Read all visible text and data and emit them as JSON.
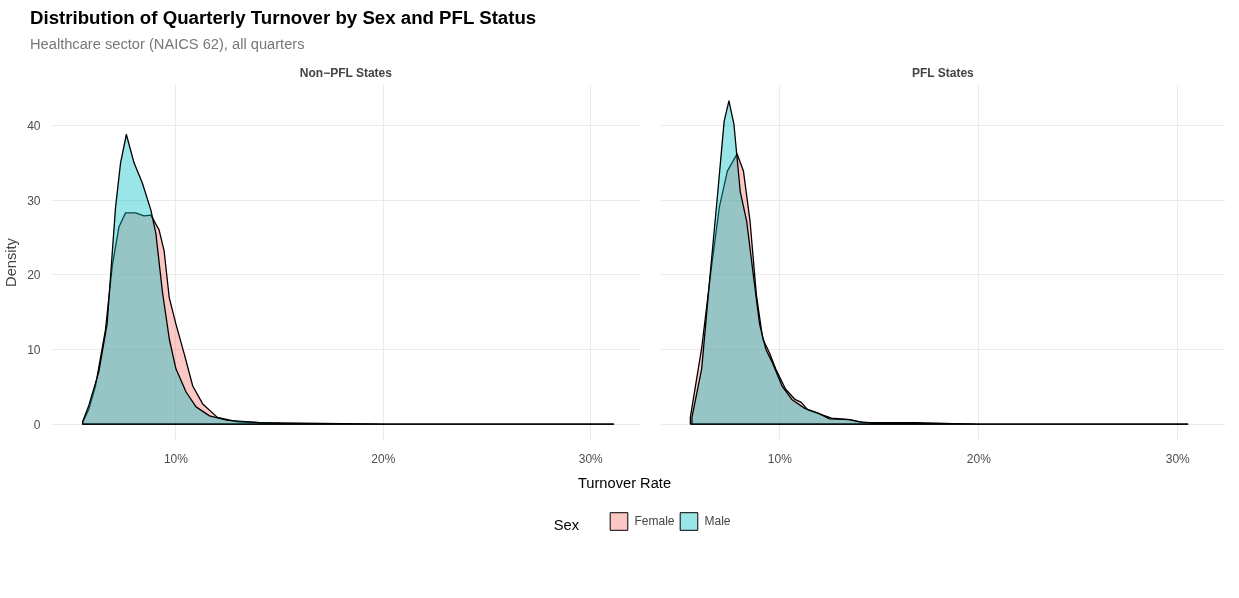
{
  "chart_data": [
    {
      "type": "area",
      "title": "Distribution of Quarterly Turnover by Sex and PFL Status",
      "subtitle": "Healthcare sector (NAICS 62), all quarters",
      "annotations": [
        "Non−PFL States"
      ],
      "xlabel": "Turnover Rate",
      "ylabel": "Density",
      "legend_title": "Sex",
      "legend": "bottom",
      "grid": true,
      "xlim": [
        4.0,
        32.4
      ],
      "xticks": [
        {
          "value": 10,
          "label": "10%"
        },
        {
          "value": 20,
          "label": "20%"
        },
        {
          "value": 30,
          "label": "30%"
        }
      ],
      "ylim": [
        -2.2,
        45.5
      ],
      "yticks": [
        0,
        10,
        20,
        30,
        40
      ],
      "series": [
        {
          "name": "Female",
          "color": "#f8766d",
          "x": [
            5.5,
            5.8,
            6.12,
            6.6,
            6.93,
            7.25,
            7.57,
            8.06,
            8.46,
            8.79,
            9.19,
            9.43,
            9.68,
            10.0,
            10.4,
            10.81,
            11.29,
            12.0,
            13.0,
            15.0,
            20.0,
            31.1
          ],
          "values": [
            0.2,
            2.0,
            5.1,
            12.6,
            21.2,
            26.4,
            28.3,
            28.3,
            27.9,
            28.0,
            26.0,
            23.2,
            16.9,
            13.4,
            9.4,
            5.1,
            2.7,
            0.9,
            0.3,
            0.1,
            0,
            0
          ]
        },
        {
          "name": "Male",
          "color": "#00bfc4",
          "x": [
            5.5,
            5.8,
            6.28,
            6.68,
            7.09,
            7.33,
            7.61,
            7.98,
            8.38,
            8.79,
            9.03,
            9.35,
            9.68,
            10.0,
            10.49,
            10.97,
            11.62,
            12.5,
            14.0,
            20.0,
            31.1
          ],
          "values": [
            0.3,
            2.5,
            7.0,
            13.4,
            29.1,
            35.0,
            38.8,
            35.0,
            32.3,
            28.7,
            25.6,
            17.7,
            11.4,
            7.4,
            4.3,
            2.3,
            1.1,
            0.5,
            0.2,
            0,
            0
          ]
        }
      ]
    },
    {
      "type": "area",
      "title": "PFL States",
      "tick_labels": "x",
      "grid": true,
      "xlim": [
        4.0,
        32.4
      ],
      "xticks": [
        {
          "value": 10,
          "label": "10%"
        },
        {
          "value": 20,
          "label": "20%"
        },
        {
          "value": 30,
          "label": "30%"
        }
      ],
      "ylim": [
        -2.2,
        45.5
      ],
      "yticks": [
        0,
        10,
        20,
        30,
        40
      ],
      "series": [
        {
          "color": "#f8766d",
          "x": [
            5.5,
            6.07,
            6.55,
            6.96,
            7.36,
            7.85,
            8.17,
            8.5,
            8.82,
            9.14,
            9.47,
            9.79,
            10.28,
            10.76,
            11.08,
            11.4,
            12.05,
            12.6,
            13.5,
            14.2,
            16.8,
            18.0,
            20.0,
            30.5
          ],
          "values": [
            0.9,
            10.2,
            20.8,
            29.1,
            33.9,
            36.2,
            33.9,
            27.2,
            17.3,
            11.4,
            9.6,
            7.4,
            4.7,
            3.3,
            2.9,
            1.9,
            1.3,
            0.8,
            0.6,
            0.2,
            0.2,
            0.1,
            0,
            0
          ]
        },
        {
          "color": "#00bfc4",
          "x": [
            5.58,
            6.07,
            6.47,
            6.88,
            7.2,
            7.44,
            7.69,
            8.01,
            8.33,
            8.66,
            8.98,
            9.3,
            9.63,
            10.11,
            10.6,
            11.25,
            11.9,
            12.5,
            13.5,
            14.0,
            15.0,
            17.0,
            18.0,
            20.0,
            30.5
          ],
          "values": [
            0.9,
            7.4,
            19.3,
            31.1,
            40.6,
            43.3,
            40.2,
            31.1,
            27.2,
            20.1,
            13.4,
            10.0,
            8.2,
            5.1,
            3.3,
            2.1,
            1.5,
            0.7,
            0.6,
            0.3,
            0.1,
            0.1,
            0.1,
            0,
            0
          ]
        }
      ]
    }
  ]
}
